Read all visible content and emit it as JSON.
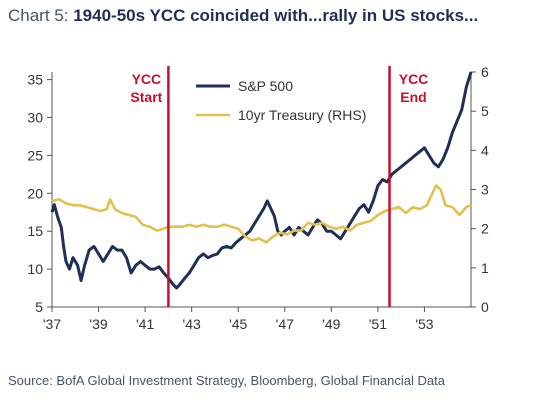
{
  "title": {
    "prefix": "Chart 5:",
    "main": "1940-50s YCC coincided with...rally in US stocks..."
  },
  "source": "Source: BofA Global Investment Strategy, Bloomberg, Global Financial Data",
  "chart_data": {
    "type": "line",
    "x_ticks": [
      "'37",
      "'39",
      "'41",
      "'43",
      "'45",
      "'47",
      "'49",
      "'51",
      "'53"
    ],
    "x_tick_years": [
      1937,
      1939,
      1941,
      1943,
      1945,
      1947,
      1949,
      1951,
      1953
    ],
    "x_range": [
      1937,
      1955
    ],
    "y_left": {
      "range": [
        5,
        36
      ],
      "ticks": [
        5,
        10,
        15,
        20,
        25,
        30,
        35
      ]
    },
    "y_right": {
      "range": [
        0,
        6
      ],
      "ticks": [
        0,
        1,
        2,
        3,
        4,
        5,
        6
      ]
    },
    "series": [
      {
        "name": "S&P 500",
        "axis": "left",
        "color": "#1f2f57",
        "points": [
          [
            1937.0,
            17.5
          ],
          [
            1937.1,
            18.5
          ],
          [
            1937.25,
            16.8
          ],
          [
            1937.4,
            15.5
          ],
          [
            1937.5,
            13.0
          ],
          [
            1937.6,
            11.0
          ],
          [
            1937.75,
            10.0
          ],
          [
            1937.9,
            11.5
          ],
          [
            1938.1,
            10.5
          ],
          [
            1938.25,
            8.5
          ],
          [
            1938.4,
            10.5
          ],
          [
            1938.6,
            12.5
          ],
          [
            1938.8,
            13.0
          ],
          [
            1939.0,
            12.0
          ],
          [
            1939.2,
            11.0
          ],
          [
            1939.4,
            12.0
          ],
          [
            1939.6,
            13.0
          ],
          [
            1939.8,
            12.5
          ],
          [
            1940.0,
            12.5
          ],
          [
            1940.2,
            11.5
          ],
          [
            1940.4,
            9.5
          ],
          [
            1940.6,
            10.5
          ],
          [
            1940.8,
            11.0
          ],
          [
            1941.0,
            10.5
          ],
          [
            1941.2,
            10.0
          ],
          [
            1941.4,
            10.0
          ],
          [
            1941.6,
            10.3
          ],
          [
            1941.8,
            9.5
          ],
          [
            1942.0,
            8.8
          ],
          [
            1942.2,
            8.0
          ],
          [
            1942.35,
            7.5
          ],
          [
            1942.5,
            8.0
          ],
          [
            1942.7,
            8.8
          ],
          [
            1942.9,
            9.5
          ],
          [
            1943.1,
            10.5
          ],
          [
            1943.3,
            11.5
          ],
          [
            1943.5,
            12.0
          ],
          [
            1943.7,
            11.5
          ],
          [
            1943.9,
            11.8
          ],
          [
            1944.1,
            12.0
          ],
          [
            1944.3,
            12.8
          ],
          [
            1944.5,
            13.0
          ],
          [
            1944.7,
            12.8
          ],
          [
            1944.9,
            13.5
          ],
          [
            1945.1,
            14.0
          ],
          [
            1945.3,
            14.5
          ],
          [
            1945.5,
            15.0
          ],
          [
            1945.7,
            16.0
          ],
          [
            1945.9,
            17.0
          ],
          [
            1946.1,
            18.0
          ],
          [
            1946.25,
            19.0
          ],
          [
            1946.4,
            18.0
          ],
          [
            1946.55,
            17.0
          ],
          [
            1946.7,
            15.0
          ],
          [
            1946.85,
            14.5
          ],
          [
            1947.0,
            15.0
          ],
          [
            1947.2,
            15.5
          ],
          [
            1947.4,
            14.5
          ],
          [
            1947.6,
            15.5
          ],
          [
            1947.8,
            15.0
          ],
          [
            1948.0,
            14.5
          ],
          [
            1948.2,
            15.5
          ],
          [
            1948.4,
            16.5
          ],
          [
            1948.6,
            16.0
          ],
          [
            1948.8,
            15.0
          ],
          [
            1949.0,
            15.0
          ],
          [
            1949.2,
            14.5
          ],
          [
            1949.4,
            14.0
          ],
          [
            1949.6,
            15.0
          ],
          [
            1949.8,
            16.0
          ],
          [
            1950.0,
            17.0
          ],
          [
            1950.2,
            18.0
          ],
          [
            1950.4,
            18.5
          ],
          [
            1950.6,
            17.5
          ],
          [
            1950.8,
            19.0
          ],
          [
            1951.0,
            21.0
          ],
          [
            1951.2,
            21.8
          ],
          [
            1951.4,
            21.5
          ],
          [
            1951.6,
            22.5
          ],
          [
            1951.8,
            23.0
          ],
          [
            1952.0,
            23.5
          ],
          [
            1952.2,
            24.0
          ],
          [
            1952.4,
            24.5
          ],
          [
            1952.6,
            25.0
          ],
          [
            1952.8,
            25.5
          ],
          [
            1953.0,
            26.0
          ],
          [
            1953.2,
            25.0
          ],
          [
            1953.4,
            24.0
          ],
          [
            1953.6,
            23.5
          ],
          [
            1953.8,
            24.5
          ],
          [
            1954.0,
            26.0
          ],
          [
            1954.2,
            28.0
          ],
          [
            1954.4,
            29.5
          ],
          [
            1954.6,
            31.0
          ],
          [
            1954.8,
            34.0
          ],
          [
            1955.0,
            36.0
          ]
        ]
      },
      {
        "name": "10yr Treasury (RHS)",
        "axis": "right",
        "color": "#e3c14e",
        "points": [
          [
            1937.0,
            2.7
          ],
          [
            1937.3,
            2.75
          ],
          [
            1937.6,
            2.65
          ],
          [
            1937.9,
            2.6
          ],
          [
            1938.2,
            2.6
          ],
          [
            1938.5,
            2.55
          ],
          [
            1938.8,
            2.5
          ],
          [
            1939.1,
            2.45
          ],
          [
            1939.35,
            2.5
          ],
          [
            1939.5,
            2.75
          ],
          [
            1939.7,
            2.5
          ],
          [
            1940.0,
            2.4
          ],
          [
            1940.3,
            2.35
          ],
          [
            1940.6,
            2.3
          ],
          [
            1940.9,
            2.1
          ],
          [
            1941.2,
            2.05
          ],
          [
            1941.5,
            1.95
          ],
          [
            1941.8,
            2.0
          ],
          [
            1942.0,
            2.05
          ],
          [
            1942.3,
            2.05
          ],
          [
            1942.6,
            2.05
          ],
          [
            1942.9,
            2.1
          ],
          [
            1943.2,
            2.05
          ],
          [
            1943.5,
            2.1
          ],
          [
            1943.8,
            2.05
          ],
          [
            1944.1,
            2.05
          ],
          [
            1944.4,
            2.1
          ],
          [
            1944.7,
            2.05
          ],
          [
            1945.0,
            2.0
          ],
          [
            1945.3,
            1.8
          ],
          [
            1945.6,
            1.7
          ],
          [
            1945.9,
            1.75
          ],
          [
            1946.2,
            1.65
          ],
          [
            1946.5,
            1.8
          ],
          [
            1946.8,
            1.9
          ],
          [
            1947.1,
            1.85
          ],
          [
            1947.4,
            1.95
          ],
          [
            1947.7,
            1.95
          ],
          [
            1948.0,
            2.15
          ],
          [
            1948.3,
            2.1
          ],
          [
            1948.6,
            2.15
          ],
          [
            1948.9,
            2.05
          ],
          [
            1949.2,
            2.0
          ],
          [
            1949.5,
            2.05
          ],
          [
            1949.8,
            1.95
          ],
          [
            1950.1,
            2.1
          ],
          [
            1950.4,
            2.15
          ],
          [
            1950.7,
            2.2
          ],
          [
            1951.0,
            2.35
          ],
          [
            1951.3,
            2.45
          ],
          [
            1951.6,
            2.5
          ],
          [
            1951.9,
            2.55
          ],
          [
            1952.2,
            2.4
          ],
          [
            1952.5,
            2.55
          ],
          [
            1952.8,
            2.5
          ],
          [
            1953.1,
            2.6
          ],
          [
            1953.3,
            2.85
          ],
          [
            1953.5,
            3.1
          ],
          [
            1953.7,
            3.0
          ],
          [
            1953.9,
            2.6
          ],
          [
            1954.2,
            2.55
          ],
          [
            1954.5,
            2.35
          ],
          [
            1954.8,
            2.55
          ],
          [
            1955.0,
            2.6
          ]
        ]
      }
    ],
    "markers": [
      {
        "label_line1": "YCC",
        "label_line2": "Start",
        "x": 1942.0,
        "color": "#c8102e"
      },
      {
        "label_line1": "YCC",
        "label_line2": "End",
        "x": 1951.5,
        "color": "#c8102e"
      }
    ],
    "legend": {
      "position": "top-center"
    }
  }
}
